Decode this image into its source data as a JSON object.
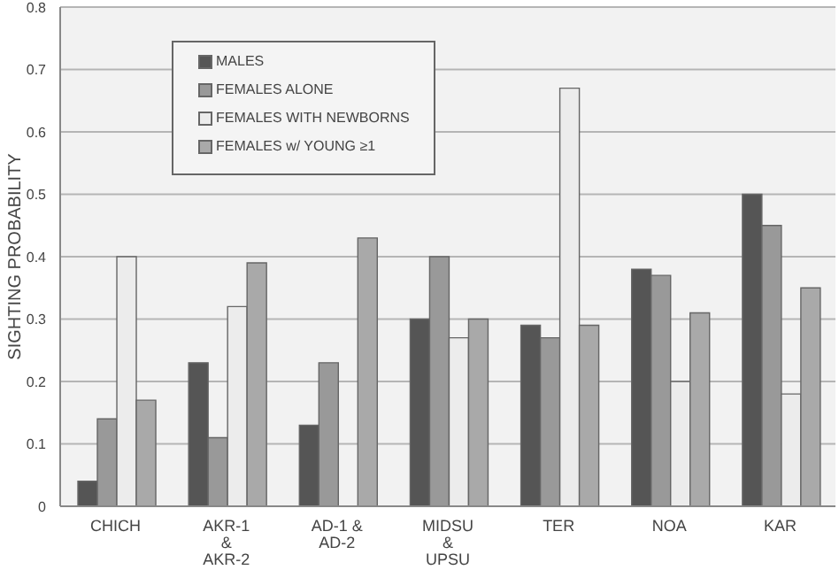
{
  "chart_data": {
    "type": "bar",
    "ylabel": "SIGHTING PROBABILITY",
    "categories": [
      "CHICH",
      "AKR-1\n&\nAKR-2",
      "AD-1 &\nAD-2",
      "MIDSU\n&\nUPSU",
      "TER",
      "NOA",
      "KAR"
    ],
    "series": [
      {
        "name": "MALES",
        "color": "#555555",
        "values": [
          0.04,
          0.23,
          0.13,
          0.3,
          0.29,
          0.38,
          0.5
        ]
      },
      {
        "name": "FEMALES ALONE",
        "color": "#999999",
        "values": [
          0.14,
          0.11,
          0.23,
          0.4,
          0.27,
          0.37,
          0.45
        ]
      },
      {
        "name": "FEMALES WITH NEWBORNS",
        "color": "#ececec",
        "values": [
          0.4,
          0.32,
          null,
          0.27,
          0.67,
          0.2,
          0.18
        ]
      },
      {
        "name": "FEMALES w/ YOUNG ≥1",
        "color": "#a9a9a9",
        "values": [
          0.17,
          0.39,
          0.43,
          0.3,
          0.29,
          0.31,
          0.35
        ]
      }
    ],
    "ylim": [
      0,
      0.8
    ],
    "yticks": [
      0,
      0.1,
      0.2,
      0.3,
      0.4,
      0.5,
      0.6,
      0.7,
      0.8
    ],
    "grid": "y",
    "legend": "top left"
  }
}
